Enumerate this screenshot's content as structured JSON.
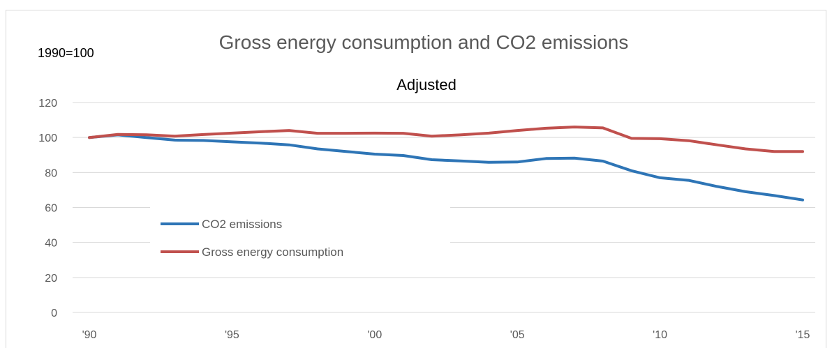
{
  "chart_data": {
    "type": "line",
    "title": "Gross energy consumption and CO2 emissions",
    "subtitle": "Adjusted",
    "unit_label": "1990=100",
    "ylim": [
      0,
      120
    ],
    "y_ticks": [
      0,
      20,
      40,
      60,
      80,
      100,
      120
    ],
    "x": [
      1990,
      1991,
      1992,
      1993,
      1994,
      1995,
      1996,
      1997,
      1998,
      1999,
      2000,
      2001,
      2002,
      2003,
      2004,
      2005,
      2006,
      2007,
      2008,
      2009,
      2010,
      2011,
      2012,
      2013,
      2014,
      2015
    ],
    "x_ticks": [
      {
        "value": 1990,
        "label": "'90"
      },
      {
        "value": 1995,
        "label": "'95"
      },
      {
        "value": 2000,
        "label": "'00"
      },
      {
        "value": 2005,
        "label": "'05"
      },
      {
        "value": 2010,
        "label": "'10"
      },
      {
        "value": 2015,
        "label": "'15"
      }
    ],
    "grid": true,
    "legend_position": "center-left",
    "series": [
      {
        "name": "CO2 emissions",
        "color": "#2e75b6",
        "values": [
          100,
          101.5,
          100,
          98.5,
          98.3,
          97.5,
          96.8,
          95.8,
          93.5,
          92,
          90.5,
          89.7,
          87.3,
          86.6,
          85.8,
          86,
          88,
          88.2,
          86.5,
          81,
          77,
          75.5,
          72,
          69,
          66.8,
          64.3
        ]
      },
      {
        "name": "Gross energy consumption",
        "color": "#c0504d",
        "values": [
          100,
          101.8,
          101.6,
          100.8,
          101.7,
          102.5,
          103.3,
          104,
          102.4,
          102.4,
          102.5,
          102.4,
          100.8,
          101.5,
          102.5,
          104,
          105.3,
          106,
          105.5,
          99.5,
          99.3,
          98.2,
          95.8,
          93.5,
          92,
          92
        ]
      }
    ]
  }
}
